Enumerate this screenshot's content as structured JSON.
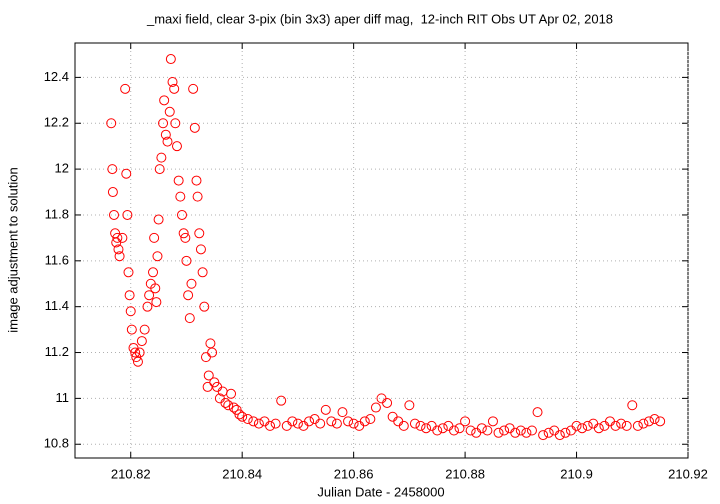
{
  "chart_data": {
    "type": "scatter",
    "title": "_maxi field, clear 3-pix (bin 3x3) aper diff mag,  12-inch RIT Obs UT Apr 02, 2018",
    "x_label": "Julian Date - 2458000",
    "y_label": "image adjustment to solution",
    "color": "#ff0000",
    "grid": true,
    "xlim": [
      210.81,
      210.92
    ],
    "ylim": [
      10.74,
      12.55
    ],
    "xticks": [
      210.82,
      210.84,
      210.86,
      210.88,
      210.9,
      210.92
    ],
    "yticks": [
      10.8,
      11,
      11.2,
      11.4,
      11.6,
      11.8,
      12,
      12.2,
      12.4
    ],
    "x": [
      210.8165,
      210.8167,
      210.8168,
      210.817,
      210.8172,
      210.8174,
      210.8176,
      210.8178,
      210.818,
      210.8185,
      210.819,
      210.8192,
      210.8194,
      210.8196,
      210.8198,
      210.82,
      210.8202,
      210.8205,
      210.8208,
      210.821,
      210.8213,
      210.8216,
      210.822,
      210.8225,
      210.823,
      210.8233,
      210.8236,
      210.824,
      210.8242,
      210.8244,
      210.8246,
      210.8248,
      210.825,
      210.8252,
      210.8255,
      210.8258,
      210.826,
      210.8263,
      210.8266,
      210.827,
      210.8272,
      210.8275,
      210.8278,
      210.828,
      210.8283,
      210.8286,
      210.8289,
      210.8292,
      210.8295,
      210.8298,
      210.83,
      210.8303,
      210.8306,
      210.8309,
      210.8312,
      210.8315,
      210.8318,
      210.832,
      210.8323,
      210.8326,
      210.8329,
      210.8332,
      210.8335,
      210.8338,
      210.834,
      210.8343,
      210.8346,
      210.835,
      210.8355,
      210.836,
      210.8365,
      210.837,
      210.8375,
      210.838,
      210.8385,
      210.839,
      210.8395,
      210.84,
      210.841,
      210.842,
      210.843,
      210.844,
      210.845,
      210.846,
      210.847,
      210.848,
      210.849,
      210.85,
      210.851,
      210.852,
      210.853,
      210.854,
      210.855,
      210.856,
      210.857,
      210.858,
      210.859,
      210.86,
      210.861,
      210.862,
      210.863,
      210.864,
      210.865,
      210.866,
      210.867,
      210.868,
      210.869,
      210.87,
      210.871,
      210.872,
      210.873,
      210.874,
      210.875,
      210.876,
      210.877,
      210.878,
      210.879,
      210.88,
      210.881,
      210.882,
      210.883,
      210.884,
      210.885,
      210.886,
      210.887,
      210.888,
      210.889,
      210.89,
      210.891,
      210.892,
      210.893,
      210.894,
      210.895,
      210.896,
      210.897,
      210.898,
      210.899,
      210.9,
      210.901,
      210.902,
      210.903,
      210.904,
      210.905,
      210.906,
      210.907,
      210.908,
      210.909,
      210.91,
      210.911,
      210.912,
      210.913,
      210.914,
      210.915
    ],
    "values": [
      12.2,
      12.0,
      11.9,
      11.8,
      11.72,
      11.68,
      11.7,
      11.65,
      11.62,
      11.7,
      12.35,
      11.98,
      11.8,
      11.55,
      11.45,
      11.38,
      11.3,
      11.22,
      11.2,
      11.18,
      11.16,
      11.2,
      11.25,
      11.3,
      11.4,
      11.45,
      11.5,
      11.55,
      11.7,
      11.48,
      11.42,
      11.62,
      11.78,
      12.0,
      12.05,
      12.2,
      12.3,
      12.15,
      12.12,
      12.25,
      12.48,
      12.38,
      12.35,
      12.2,
      12.1,
      11.95,
      11.88,
      11.8,
      11.72,
      11.7,
      11.6,
      11.45,
      11.35,
      11.5,
      12.35,
      12.18,
      11.95,
      11.88,
      11.72,
      11.65,
      11.55,
      11.4,
      11.18,
      11.05,
      11.1,
      11.24,
      11.2,
      11.07,
      11.05,
      11.0,
      11.03,
      10.98,
      10.97,
      11.02,
      10.96,
      10.95,
      10.93,
      10.92,
      10.91,
      10.9,
      10.89,
      10.9,
      10.88,
      10.89,
      10.99,
      10.88,
      10.9,
      10.89,
      10.88,
      10.9,
      10.91,
      10.89,
      10.95,
      10.9,
      10.89,
      10.94,
      10.9,
      10.89,
      10.88,
      10.9,
      10.91,
      10.96,
      11.0,
      10.98,
      10.92,
      10.9,
      10.88,
      10.97,
      10.89,
      10.88,
      10.87,
      10.88,
      10.86,
      10.87,
      10.88,
      10.86,
      10.87,
      10.9,
      10.86,
      10.85,
      10.87,
      10.86,
      10.9,
      10.85,
      10.86,
      10.87,
      10.85,
      10.86,
      10.85,
      10.86,
      10.94,
      10.84,
      10.85,
      10.86,
      10.84,
      10.85,
      10.86,
      10.88,
      10.87,
      10.88,
      10.89,
      10.87,
      10.88,
      10.9,
      10.88,
      10.89,
      10.88,
      10.97,
      10.88,
      10.89,
      10.9,
      10.91,
      10.9
    ]
  }
}
